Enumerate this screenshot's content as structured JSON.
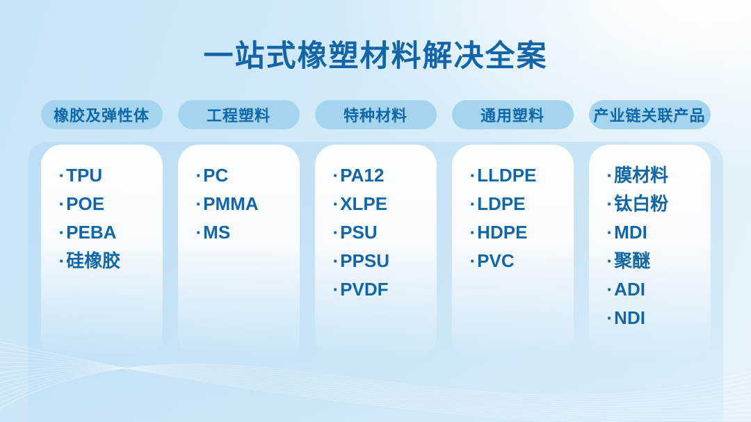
{
  "title": "一站式橡塑材料解决全案",
  "bullet": "·",
  "columns": [
    {
      "header": "橡胶及弹性体",
      "items": [
        "TPU",
        "POE",
        "PEBA",
        "硅橡胶"
      ]
    },
    {
      "header": "工程塑料",
      "items": [
        "PC",
        "PMMA",
        "MS"
      ]
    },
    {
      "header": "特种材料",
      "items": [
        "PA12",
        "XLPE",
        "PSU",
        "PPSU",
        "PVDF"
      ]
    },
    {
      "header": "通用塑料",
      "items": [
        "LLDPE",
        "LDPE",
        "HDPE",
        "PVC"
      ]
    },
    {
      "header": "产业链关联产品",
      "items": [
        "膜材料",
        "钛白粉",
        "MDI",
        "聚醚",
        "ADI",
        "NDI"
      ]
    }
  ],
  "colors": {
    "title": "#1465a7",
    "pill_bg": "#a5d5ee",
    "pill_text": "#0f67a9",
    "item_text": "#1366a5",
    "bg_top_left": "#c7e4f7",
    "bg_top_right": "#ffffff",
    "bg_bottom_right": "#e6f3fb",
    "wave_line": "#ffffff"
  }
}
